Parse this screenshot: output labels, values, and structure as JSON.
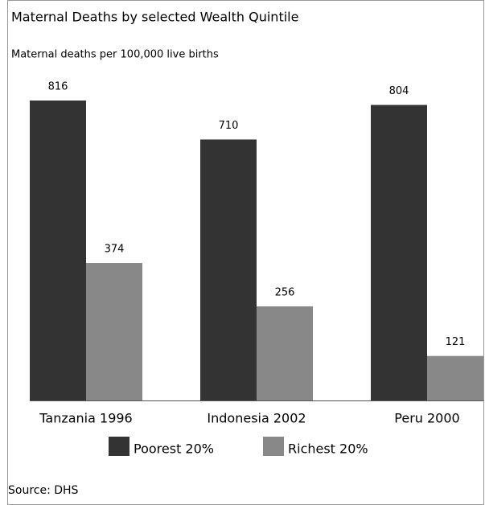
{
  "chart_data": {
    "type": "bar",
    "title": "Maternal Deaths by selected Wealth Quintile",
    "subtitle": "Maternal deaths per 100,000 live births",
    "categories": [
      "Tanzania 1996",
      "Indonesia 2002",
      "Peru 2000"
    ],
    "series": [
      {
        "name": "Poorest 20%",
        "color": "#333333",
        "values": [
          816,
          710,
          804
        ]
      },
      {
        "name": "Richest 20%",
        "color": "#888888",
        "values": [
          374,
          256,
          121
        ]
      }
    ],
    "source": "Source: DHS"
  }
}
